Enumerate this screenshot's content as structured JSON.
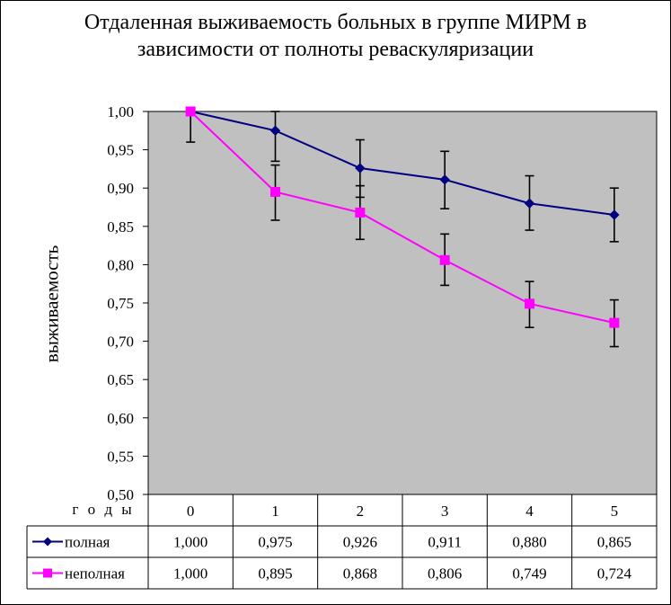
{
  "chart_data": {
    "type": "line",
    "title_line1": "Отдаленная выживаемость больных в группе МИРМ в",
    "title_line2": "зависимости от полноты реваскуляризации",
    "ylabel": "выживаемость",
    "xlabel": "г о д ы",
    "categories": [
      "0",
      "1",
      "2",
      "3",
      "4",
      "5"
    ],
    "ylim": [
      0.5,
      1.0
    ],
    "yticks": [
      "0,50",
      "0,55",
      "0,60",
      "0,65",
      "0,70",
      "0,75",
      "0,80",
      "0,85",
      "0,90",
      "0,95",
      "1,00"
    ],
    "series": [
      {
        "name": "полная",
        "color": "#000080",
        "marker": "diamond",
        "values": [
          1.0,
          0.975,
          0.926,
          0.911,
          0.88,
          0.865
        ],
        "labels": [
          "1,000",
          "0,975",
          "0,926",
          "0,911",
          "0,880",
          "0,865"
        ],
        "err_low": [
          1.0,
          0.935,
          0.888,
          0.873,
          0.845,
          0.83
        ],
        "err_high": [
          1.0,
          1.0,
          0.963,
          0.948,
          0.916,
          0.9
        ]
      },
      {
        "name": "неполная",
        "color": "#ff00ff",
        "marker": "square",
        "values": [
          1.0,
          0.895,
          0.868,
          0.806,
          0.749,
          0.724
        ],
        "labels": [
          "1,000",
          "0,895",
          "0,868",
          "0,806",
          "0,749",
          "0,724"
        ],
        "err_low": [
          0.96,
          0.858,
          0.833,
          0.773,
          0.718,
          0.693
        ],
        "err_high": [
          1.0,
          0.93,
          0.903,
          0.84,
          0.778,
          0.754
        ]
      }
    ],
    "plot_background": "#c0c0c0",
    "grid": false,
    "legend": "data-table"
  }
}
